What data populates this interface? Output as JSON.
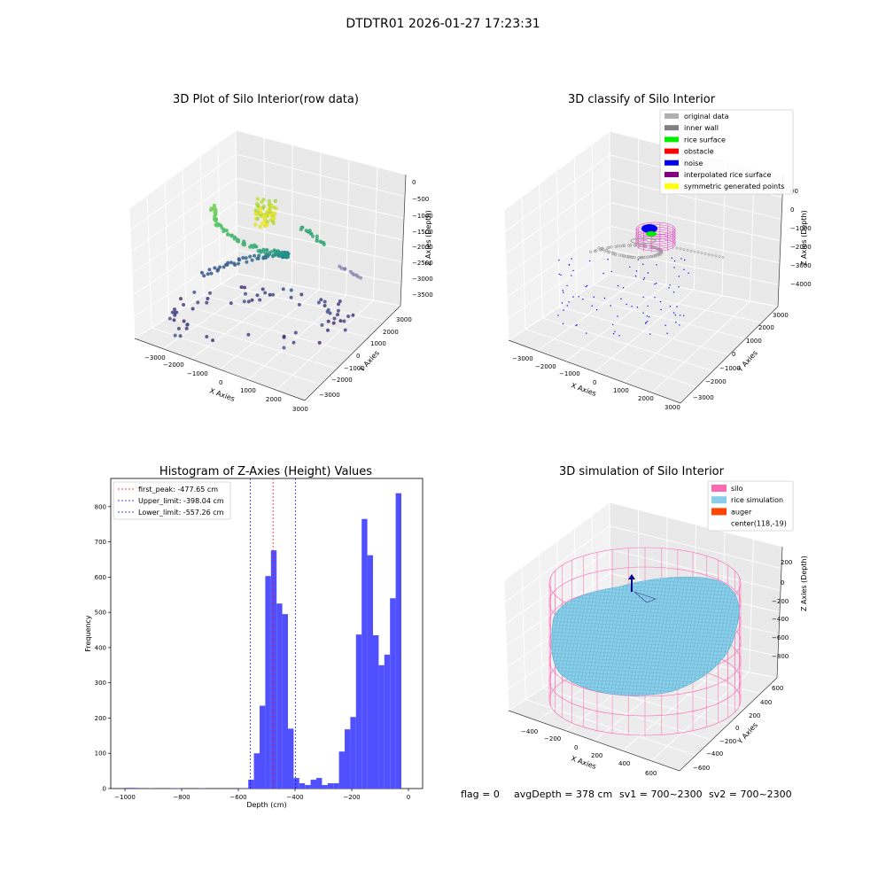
{
  "figure": {
    "suptitle": "DTDTR01 2026-01-27 17:23:31",
    "footer": {
      "flag": "flag = 0",
      "avg": "avgDepth = 378 cm",
      "sv1": "sv1 = 700~2300",
      "sv2": "sv2 = 700~2300"
    }
  },
  "chart_data": [
    {
      "type": "scatter",
      "projection": "3d",
      "title": "3D Plot of Silo Interior(row data)",
      "xlabel": "X Axies",
      "ylabel": "Y Axies",
      "zlabel": "Z Axies (Depth)",
      "xticks": [
        "−3000",
        "−2000",
        "−1000",
        "0",
        "1000",
        "2000",
        "3000"
      ],
      "yticks": [
        "−3000",
        "−2000",
        "−1000",
        "0",
        "1000",
        "2000",
        "3000"
      ],
      "zticks": [
        "0",
        "−500",
        "−1000",
        "−1500",
        "−2000",
        "−2500",
        "−3000",
        "−3500"
      ],
      "colormap": "viridis (by height)"
    },
    {
      "type": "scatter",
      "projection": "3d",
      "title": "3D classify of Silo Interior",
      "xlabel": "X Axies",
      "ylabel": "Y Axies",
      "zlabel": "Z Axies (Depth)",
      "xticks": [
        "−3000",
        "−2000",
        "−1000",
        "0",
        "1000",
        "2000",
        "3000"
      ],
      "yticks": [
        "−3000",
        "−2000",
        "−1000",
        "0",
        "1000",
        "2000",
        "3000"
      ],
      "zticks": [
        "1000",
        "0",
        "−1000",
        "−2000",
        "−3000",
        "−4000"
      ],
      "zticks_display": [
        "00",
        "0",
        "−1000",
        "−2000",
        "−3000",
        "−4000"
      ],
      "legend_position": "upper right",
      "legend": [
        {
          "label": "original data",
          "color": "#b0b0b0"
        },
        {
          "label": "inner wall",
          "color": "#808080"
        },
        {
          "label": "rice surface",
          "color": "#00ee00"
        },
        {
          "label": "obstacle",
          "color": "#ff0000"
        },
        {
          "label": "noise",
          "color": "#0000ee"
        },
        {
          "label": "interpolated rice surface",
          "color": "#800080"
        },
        {
          "label": "symmetric generated points",
          "color": "#ffff00"
        }
      ]
    },
    {
      "type": "bar",
      "title": "Histogram of Z-Axies (Height) Values",
      "xlabel": "Depth (cm)",
      "ylabel": "Frequency",
      "xlim": [
        -1050,
        50
      ],
      "ylim": [
        0,
        880
      ],
      "xticks": [
        -1000,
        -800,
        -600,
        -400,
        -200,
        0
      ],
      "xtick_labels": [
        "−1000",
        "−800",
        "−600",
        "−400",
        "−200",
        "0"
      ],
      "yticks": [
        0,
        100,
        200,
        300,
        400,
        500,
        600,
        700,
        800
      ],
      "bin_width": 20,
      "bar_color": "#5050ff",
      "bins": [
        {
          "x0": -1000,
          "count": 2
        },
        {
          "x0": -980,
          "count": 2
        },
        {
          "x0": -920,
          "count": 1
        },
        {
          "x0": -840,
          "count": 1
        },
        {
          "x0": -820,
          "count": 1
        },
        {
          "x0": -740,
          "count": 1
        },
        {
          "x0": -600,
          "count": 1
        },
        {
          "x0": -580,
          "count": 1
        },
        {
          "x0": -565,
          "count": 25
        },
        {
          "x0": -545,
          "count": 100
        },
        {
          "x0": -525,
          "count": 235
        },
        {
          "x0": -505,
          "count": 603
        },
        {
          "x0": -485,
          "count": 676
        },
        {
          "x0": -465,
          "count": 525
        },
        {
          "x0": -445,
          "count": 495
        },
        {
          "x0": -425,
          "count": 170
        },
        {
          "x0": -405,
          "count": 30
        },
        {
          "x0": -385,
          "count": 15
        },
        {
          "x0": -365,
          "count": 10
        },
        {
          "x0": -345,
          "count": 25
        },
        {
          "x0": -325,
          "count": 30
        },
        {
          "x0": -305,
          "count": 10
        },
        {
          "x0": -285,
          "count": 15
        },
        {
          "x0": -265,
          "count": 15
        },
        {
          "x0": -245,
          "count": 105
        },
        {
          "x0": -225,
          "count": 168
        },
        {
          "x0": -205,
          "count": 203
        },
        {
          "x0": -185,
          "count": 437
        },
        {
          "x0": -165,
          "count": 765
        },
        {
          "x0": -145,
          "count": 662
        },
        {
          "x0": -125,
          "count": 435
        },
        {
          "x0": -105,
          "count": 350
        },
        {
          "x0": -85,
          "count": 380
        },
        {
          "x0": -65,
          "count": 540
        },
        {
          "x0": -45,
          "count": 838
        }
      ],
      "vlines": [
        {
          "x": -477.65,
          "color": "#ff0000",
          "label": "first_peak: -477.65 cm"
        },
        {
          "x": -398.04,
          "color": "#0000ff",
          "label": "Upper_limit: -398.04 cm"
        },
        {
          "x": -557.26,
          "color": "#0000ff",
          "label": "Lower_limit: -557.26 cm"
        }
      ],
      "legend_position": "upper left"
    },
    {
      "type": "surface",
      "projection": "3d",
      "title": "3D simulation of Silo Interior",
      "xlabel": "X Axies",
      "ylabel": "Y Axies",
      "zlabel": "Z Axies (Depth)",
      "xticks": [
        "−400",
        "−200",
        "0",
        "200",
        "400",
        "600"
      ],
      "yticks": [
        "600",
        "400",
        "200",
        "0",
        "−200",
        "−400",
        "−600"
      ],
      "zticks": [
        "200",
        "0",
        "−200",
        "−400",
        "−600",
        "−800"
      ],
      "legend_position": "upper right",
      "legend": [
        {
          "label": "silo",
          "color": "#ff69b4"
        },
        {
          "label": "rice simulation",
          "color": "#87ceeb"
        },
        {
          "label": "auger",
          "color": "#ff4500"
        },
        {
          "label": "center(118,-19)",
          "color": "none"
        }
      ]
    }
  ]
}
